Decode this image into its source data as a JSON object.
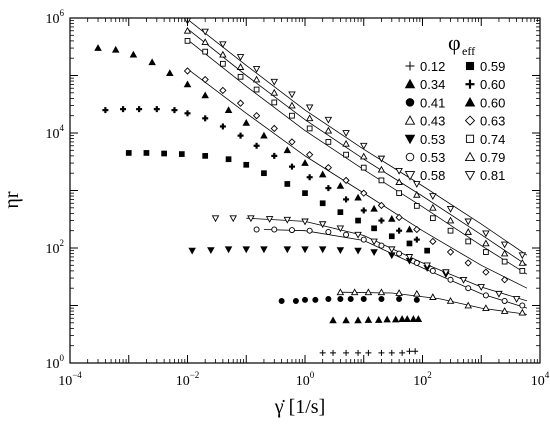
{
  "chart_data": {
    "type": "scatter",
    "xlabel": "γ̇ [1/s]",
    "ylabel": "ηr",
    "xscale": "log",
    "yscale": "log",
    "xlim": [
      0.0001,
      10000
    ],
    "ylim": [
      1,
      1000000
    ],
    "x_ticks": [
      {
        "value": 0.0001,
        "base": "10",
        "exp": "−4"
      },
      {
        "value": 0.01,
        "base": "10",
        "exp": "−2"
      },
      {
        "value": 1,
        "base": "10",
        "exp": "0"
      },
      {
        "value": 100,
        "base": "10",
        "exp": "2"
      },
      {
        "value": 10000,
        "base": "10",
        "exp": "4"
      }
    ],
    "y_ticks": [
      {
        "value": 1,
        "base": "10",
        "exp": "0"
      },
      {
        "value": 100,
        "base": "10",
        "exp": "2"
      },
      {
        "value": 10000,
        "base": "10",
        "exp": "4"
      },
      {
        "value": 1000000,
        "base": "10",
        "exp": "6"
      }
    ],
    "legend": {
      "title": "φ",
      "title_sub": "eff",
      "placement": "top-right",
      "columns": 2
    },
    "series": [
      {
        "name": "0.12",
        "marker": "plus",
        "points": [
          [
            2,
            1.5
          ],
          [
            3,
            1.5
          ],
          [
            5,
            1.5
          ],
          [
            8,
            1.5
          ],
          [
            12,
            1.5
          ],
          [
            20,
            1.5
          ],
          [
            30,
            1.5
          ],
          [
            45,
            1.5
          ],
          [
            60,
            1.6
          ],
          [
            75,
            1.6
          ]
        ]
      },
      {
        "name": "0.34",
        "marker": "triangle",
        "points": [
          [
            3,
            5.5
          ],
          [
            5,
            5.5
          ],
          [
            8,
            5.5
          ],
          [
            12,
            5.6
          ],
          [
            18,
            5.6
          ],
          [
            25,
            5.7
          ],
          [
            35,
            5.7
          ],
          [
            45,
            5.8
          ],
          [
            55,
            5.8
          ],
          [
            70,
            5.8
          ],
          [
            85,
            5.8
          ]
        ]
      },
      {
        "name": "0.41",
        "marker": "circle",
        "points": [
          [
            0.4,
            12
          ],
          [
            0.7,
            12
          ],
          [
            1,
            12.5
          ],
          [
            1.5,
            12.5
          ],
          [
            2.5,
            13
          ],
          [
            4,
            13
          ],
          [
            6,
            13
          ],
          [
            10,
            13
          ],
          [
            20,
            13
          ],
          [
            40,
            13
          ],
          [
            80,
            12.5
          ]
        ]
      },
      {
        "name": "0.43",
        "marker": "triangle-open",
        "points": [
          [
            4,
            17
          ],
          [
            7,
            17
          ],
          [
            12,
            17
          ],
          [
            20,
            17
          ],
          [
            40,
            16.5
          ],
          [
            80,
            16
          ],
          [
            150,
            14
          ],
          [
            300,
            12
          ],
          [
            600,
            10
          ],
          [
            1200,
            9
          ],
          [
            2500,
            8
          ],
          [
            5000,
            7.5
          ]
        ]
      },
      {
        "name": "0.53",
        "marker": "triangle-down",
        "points": [
          [
            0.012,
            90
          ],
          [
            0.025,
            92
          ],
          [
            0.05,
            95
          ],
          [
            0.1,
            95
          ],
          [
            0.2,
            95
          ],
          [
            0.5,
            95
          ],
          [
            1,
            95
          ],
          [
            2,
            95
          ],
          [
            4,
            92
          ],
          [
            8,
            90
          ],
          [
            15,
            85
          ],
          [
            30,
            75
          ],
          [
            60,
            60
          ],
          [
            120,
            45
          ],
          [
            250,
            35
          ]
        ]
      },
      {
        "name": "0.53",
        "marker": "circle-open",
        "points": [
          [
            0.15,
            210
          ],
          [
            0.3,
            210
          ],
          [
            0.6,
            205
          ],
          [
            1.2,
            200
          ],
          [
            2.5,
            190
          ],
          [
            5,
            170
          ],
          [
            10,
            140
          ],
          [
            20,
            110
          ],
          [
            40,
            80
          ],
          [
            80,
            55
          ],
          [
            150,
            40
          ],
          [
            300,
            28
          ],
          [
            600,
            20
          ],
          [
            1200,
            15
          ],
          [
            2500,
            12
          ],
          [
            5000,
            10
          ]
        ]
      },
      {
        "name": "0.58",
        "marker": "triangle-down-open",
        "points": [
          [
            0.03,
            330
          ],
          [
            0.06,
            330
          ],
          [
            0.12,
            330
          ],
          [
            0.25,
            320
          ],
          [
            0.5,
            310
          ],
          [
            1,
            290
          ],
          [
            2,
            260
          ],
          [
            4,
            220
          ],
          [
            8,
            170
          ],
          [
            15,
            130
          ],
          [
            30,
            95
          ],
          [
            60,
            70
          ],
          [
            120,
            50
          ],
          [
            250,
            38
          ],
          [
            500,
            28
          ],
          [
            1000,
            21
          ],
          [
            2000,
            16
          ],
          [
            4000,
            13
          ]
        ]
      },
      {
        "name": "0.59",
        "marker": "square",
        "points": [
          [
            0.001,
            4500
          ],
          [
            0.002,
            4500
          ],
          [
            0.004,
            4400
          ],
          [
            0.008,
            4300
          ],
          [
            0.02,
            4000
          ],
          [
            0.05,
            3500
          ],
          [
            0.1,
            2800
          ],
          [
            0.2,
            2000
          ],
          [
            0.5,
            1300
          ],
          [
            1,
            900
          ],
          [
            2,
            600
          ],
          [
            4,
            420
          ],
          [
            8,
            300
          ],
          [
            15,
            220
          ],
          [
            30,
            160
          ],
          [
            60,
            120
          ],
          [
            120,
            90
          ]
        ]
      },
      {
        "name": "0.60",
        "marker": "plus-bold",
        "points": [
          [
            0.0004,
            25000
          ],
          [
            0.0008,
            26000
          ],
          [
            0.0015,
            26000
          ],
          [
            0.003,
            26000
          ],
          [
            0.006,
            25000
          ],
          [
            0.01,
            22000
          ],
          [
            0.02,
            18000
          ],
          [
            0.04,
            13000
          ],
          [
            0.08,
            9000
          ],
          [
            0.15,
            6000
          ],
          [
            0.3,
            4000
          ],
          [
            0.6,
            2600
          ],
          [
            1.2,
            1700
          ],
          [
            2.5,
            1100
          ],
          [
            5,
            700
          ],
          [
            10,
            450
          ],
          [
            20,
            300
          ],
          [
            40,
            200
          ],
          [
            80,
            140
          ]
        ]
      },
      {
        "name": "0.60",
        "marker": "triangle",
        "points": [
          [
            0.0003,
            300000
          ],
          [
            0.0006,
            280000
          ],
          [
            0.0012,
            230000
          ],
          [
            0.0025,
            170000
          ],
          [
            0.005,
            110000
          ],
          [
            0.01,
            70000
          ],
          [
            0.02,
            45000
          ],
          [
            0.05,
            25000
          ],
          [
            0.1,
            15000
          ],
          [
            0.2,
            9000
          ],
          [
            0.5,
            5000
          ],
          [
            1,
            3000
          ],
          [
            2,
            1900
          ],
          [
            4,
            1200
          ],
          [
            8,
            750
          ],
          [
            15,
            480
          ],
          [
            30,
            320
          ],
          [
            60,
            210
          ]
        ]
      },
      {
        "name": "0.63",
        "marker": "diamond-open",
        "points": [
          [
            0.01,
            120000
          ],
          [
            0.02,
            85000
          ],
          [
            0.04,
            55000
          ],
          [
            0.08,
            33000
          ],
          [
            0.15,
            20000
          ],
          [
            0.3,
            12000
          ],
          [
            0.6,
            7000
          ],
          [
            1.2,
            4200
          ],
          [
            2.5,
            2500
          ],
          [
            5,
            1500
          ],
          [
            10,
            900
          ],
          [
            20,
            550
          ],
          [
            40,
            340
          ],
          [
            80,
            210
          ],
          [
            150,
            130
          ],
          [
            300,
            85
          ],
          [
            600,
            55
          ],
          [
            1200,
            38
          ],
          [
            2500,
            28
          ]
        ]
      },
      {
        "name": "0.74",
        "marker": "square-open",
        "points": [
          [
            0.01,
            400000
          ],
          [
            0.02,
            260000
          ],
          [
            0.04,
            160000
          ],
          [
            0.08,
            95000
          ],
          [
            0.15,
            57000
          ],
          [
            0.3,
            34000
          ],
          [
            0.6,
            20000
          ],
          [
            1.2,
            12000
          ],
          [
            2.5,
            7000
          ],
          [
            5,
            4200
          ],
          [
            10,
            2500
          ],
          [
            20,
            1500
          ],
          [
            40,
            900
          ],
          [
            80,
            540
          ],
          [
            150,
            330
          ],
          [
            300,
            200
          ],
          [
            600,
            130
          ],
          [
            1200,
            85
          ],
          [
            2500,
            58
          ],
          [
            5000,
            40
          ]
        ]
      },
      {
        "name": "0.79",
        "marker": "triangle-open",
        "points": [
          [
            0.01,
            600000
          ],
          [
            0.02,
            380000
          ],
          [
            0.04,
            230000
          ],
          [
            0.08,
            140000
          ],
          [
            0.15,
            85000
          ],
          [
            0.3,
            50000
          ],
          [
            0.6,
            30000
          ],
          [
            1.2,
            18000
          ],
          [
            2.5,
            11000
          ],
          [
            5,
            6500
          ],
          [
            10,
            3900
          ],
          [
            20,
            2300
          ],
          [
            40,
            1400
          ],
          [
            80,
            840
          ],
          [
            150,
            500
          ],
          [
            300,
            300
          ],
          [
            600,
            190
          ],
          [
            1200,
            120
          ],
          [
            2500,
            80
          ],
          [
            5000,
            55
          ]
        ]
      },
      {
        "name": "0.81",
        "marker": "triangle-down-open",
        "points": [
          [
            0.01,
            900000
          ],
          [
            0.02,
            580000
          ],
          [
            0.04,
            350000
          ],
          [
            0.08,
            210000
          ],
          [
            0.15,
            130000
          ],
          [
            0.3,
            78000
          ],
          [
            0.6,
            47000
          ],
          [
            1.2,
            28000
          ],
          [
            2.5,
            17000
          ],
          [
            5,
            10000
          ],
          [
            10,
            6000
          ],
          [
            20,
            3600
          ],
          [
            40,
            2200
          ],
          [
            80,
            1300
          ],
          [
            150,
            800
          ],
          [
            300,
            480
          ],
          [
            600,
            290
          ],
          [
            1200,
            180
          ],
          [
            2500,
            115
          ],
          [
            5000,
            75
          ]
        ]
      }
    ],
    "fit_curves": [
      [
        [
          0.01,
          950000
        ],
        [
          0.1,
          150000
        ],
        [
          1,
          25000
        ],
        [
          10,
          5200
        ],
        [
          100,
          1200
        ],
        [
          1000,
          260
        ],
        [
          6000,
          75
        ]
      ],
      [
        [
          0.01,
          650000
        ],
        [
          0.1,
          100000
        ],
        [
          1,
          17000
        ],
        [
          10,
          3500
        ],
        [
          100,
          800
        ],
        [
          1000,
          170
        ],
        [
          6000,
          50
        ]
      ],
      [
        [
          0.01,
          420000
        ],
        [
          0.1,
          65000
        ],
        [
          1,
          11000
        ],
        [
          10,
          2300
        ],
        [
          100,
          520
        ],
        [
          1000,
          110
        ],
        [
          6000,
          35
        ]
      ],
      [
        [
          0.01,
          130000
        ],
        [
          0.1,
          22000
        ],
        [
          1,
          4000
        ],
        [
          10,
          900
        ],
        [
          100,
          200
        ],
        [
          1000,
          50
        ],
        [
          6000,
          20
        ]
      ],
      [
        [
          0.1,
          330
        ],
        [
          1,
          290
        ],
        [
          10,
          165
        ],
        [
          100,
          55
        ],
        [
          1000,
          21
        ],
        [
          6000,
          12
        ]
      ],
      [
        [
          0.2,
          210
        ],
        [
          1,
          200
        ],
        [
          10,
          135
        ],
        [
          100,
          45
        ],
        [
          1000,
          16
        ],
        [
          6000,
          9
        ]
      ],
      [
        [
          4,
          17
        ],
        [
          30,
          16.5
        ],
        [
          200,
          13
        ],
        [
          1000,
          9
        ],
        [
          6000,
          7
        ]
      ]
    ]
  }
}
